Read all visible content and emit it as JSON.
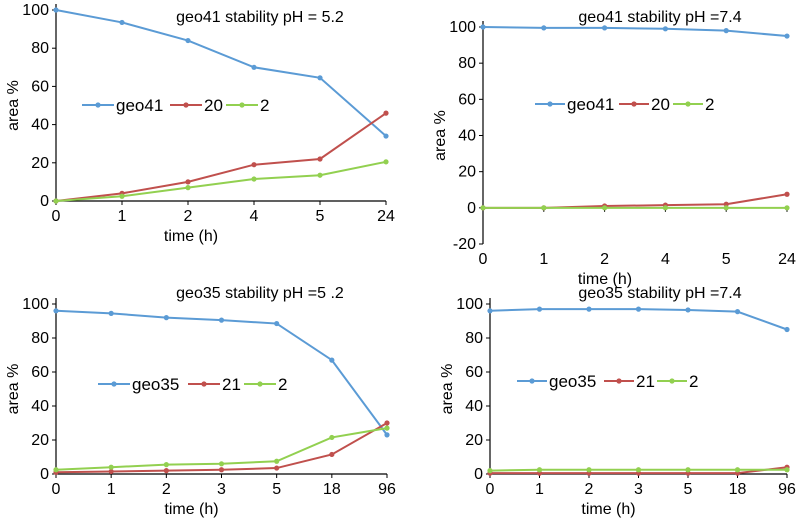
{
  "chart_data": [
    {
      "type": "line",
      "title": "geo41 stability pH = 5.2",
      "xlabel": "time (h)",
      "ylabel": "area %",
      "categories": [
        "0",
        "1",
        "2",
        "4",
        "5",
        "24"
      ],
      "ylim": [
        0,
        100
      ],
      "yticks": [
        0,
        20,
        40,
        60,
        80,
        100
      ],
      "grid": false,
      "legend": "center, single row",
      "series": [
        {
          "name": "geo41",
          "color": "#5b9bd5",
          "values": [
            100,
            93.5,
            84,
            70,
            64.5,
            34
          ]
        },
        {
          "name": "20",
          "color": "#c0504d",
          "values": [
            0,
            4,
            10,
            19,
            22,
            46
          ]
        },
        {
          "name": "2",
          "color": "#92d050",
          "values": [
            0,
            2.5,
            7,
            11.5,
            13.5,
            20.5
          ]
        }
      ]
    },
    {
      "type": "line",
      "title": "geo41 stability pH =7.4",
      "xlabel": "time (h)",
      "ylabel": "area %",
      "categories": [
        "0",
        "1",
        "2",
        "4",
        "5",
        "24"
      ],
      "ylim": [
        -20,
        100
      ],
      "yticks": [
        -20,
        0,
        20,
        40,
        60,
        80,
        100
      ],
      "grid": false,
      "legend": "center, single row",
      "series": [
        {
          "name": "geo41",
          "color": "#5b9bd5",
          "values": [
            100,
            99.5,
            99.5,
            99,
            98,
            95
          ]
        },
        {
          "name": "20",
          "color": "#c0504d",
          "values": [
            0,
            0,
            1,
            1.5,
            2,
            7.5
          ]
        },
        {
          "name": "2",
          "color": "#92d050",
          "values": [
            0,
            0,
            0,
            0,
            0,
            0
          ]
        }
      ]
    },
    {
      "type": "line",
      "title": "geo35 stability pH =5 .2",
      "xlabel": "time (h)",
      "ylabel": "area %",
      "categories": [
        "0",
        "1",
        "2",
        "3",
        "5",
        "18",
        "96"
      ],
      "ylim": [
        0,
        100
      ],
      "yticks": [
        0,
        20,
        40,
        60,
        80,
        100
      ],
      "grid": false,
      "legend": "center, single row",
      "series": [
        {
          "name": "geo35",
          "color": "#5b9bd5",
          "values": [
            96,
            94.5,
            92,
            90.5,
            88.5,
            67,
            23
          ]
        },
        {
          "name": "21",
          "color": "#c0504d",
          "values": [
            1,
            1.5,
            2,
            2.5,
            3.5,
            11.5,
            30
          ]
        },
        {
          "name": "2",
          "color": "#92d050",
          "values": [
            2.5,
            4,
            5.5,
            6,
            7.5,
            21.5,
            27
          ]
        }
      ]
    },
    {
      "type": "line",
      "title": "geo35 stability pH =7.4",
      "xlabel": "time (h)",
      "ylabel": "area %",
      "categories": [
        "0",
        "1",
        "2",
        "3",
        "5",
        "18",
        "96"
      ],
      "ylim": [
        0,
        100
      ],
      "yticks": [
        0,
        20,
        40,
        60,
        80,
        100
      ],
      "grid": false,
      "legend": "center, single row",
      "series": [
        {
          "name": "geo35",
          "color": "#5b9bd5",
          "values": [
            96,
            97,
            97,
            97,
            96.5,
            95.5,
            85
          ]
        },
        {
          "name": "21",
          "color": "#c0504d",
          "values": [
            0.5,
            0.5,
            0.5,
            0.5,
            0.5,
            0.5,
            4
          ]
        },
        {
          "name": "2",
          "color": "#92d050",
          "values": [
            2,
            2.5,
            2.5,
            2.5,
            2.5,
            2.5,
            2.5
          ]
        }
      ]
    }
  ]
}
